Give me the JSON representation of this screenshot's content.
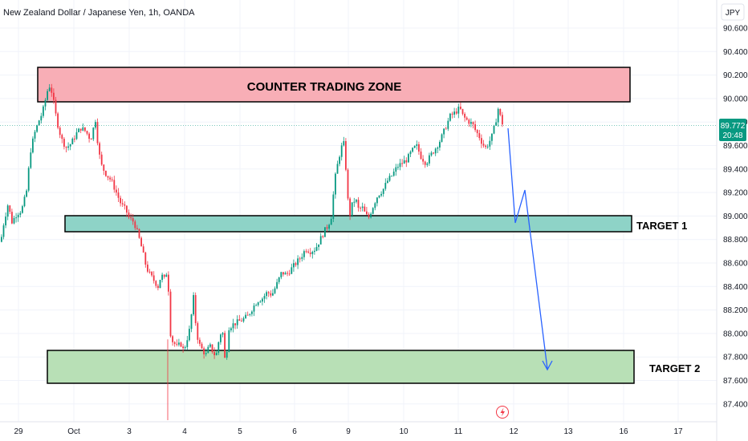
{
  "header": {
    "instrument_title": "New Zealand Dollar / Japanese Yen, 1h, OANDA",
    "currency_button": "JPY"
  },
  "price_badge": {
    "price": "89.772",
    "countdown": "20:48",
    "color": "#089981"
  },
  "colors": {
    "up_candle": "#089981",
    "down_candle": "#f23645",
    "counter_zone_fill": "#f8aeb6",
    "target1_fill": "#8ed3c7",
    "target2_fill": "#b8e0b6",
    "arrow": "#2962ff",
    "grid": "#f0f3fa",
    "current_price_line": "#089981"
  },
  "chart_data": {
    "type": "candlestick",
    "title": "New Zealand Dollar / Japanese Yen, 1h, OANDA",
    "y_axis": {
      "unit": "JPY",
      "range": [
        87.3,
        90.75
      ],
      "ticks": [
        "90.600",
        "90.400",
        "90.200",
        "90.000",
        "89.800",
        "89.600",
        "89.400",
        "89.200",
        "89.000",
        "88.800",
        "88.600",
        "88.400",
        "88.200",
        "88.000",
        "87.800",
        "87.600",
        "87.400"
      ]
    },
    "x_axis": {
      "ticks": [
        "29",
        "Oct",
        "3",
        "4",
        "5",
        "6",
        "9",
        "10",
        "11",
        "12",
        "13",
        "16",
        "17"
      ]
    },
    "current_price": 89.772,
    "price_path": [
      [
        0,
        88.78
      ],
      [
        4,
        88.95
      ],
      [
        9,
        89.1
      ],
      [
        14,
        88.95
      ],
      [
        20,
        89.02
      ],
      [
        26,
        89.05
      ],
      [
        32,
        89.2
      ],
      [
        37,
        89.55
      ],
      [
        42,
        89.7
      ],
      [
        48,
        89.82
      ],
      [
        52,
        89.88
      ],
      [
        56,
        90.0
      ],
      [
        60,
        90.12
      ],
      [
        64,
        90.05
      ],
      [
        68,
        89.88
      ],
      [
        72,
        89.75
      ],
      [
        76,
        89.65
      ],
      [
        82,
        89.58
      ],
      [
        88,
        89.62
      ],
      [
        94,
        89.7
      ],
      [
        100,
        89.75
      ],
      [
        106,
        89.72
      ],
      [
        112,
        89.65
      ],
      [
        118,
        89.82
      ],
      [
        122,
        89.55
      ],
      [
        126,
        89.42
      ],
      [
        132,
        89.35
      ],
      [
        138,
        89.3
      ],
      [
        144,
        89.2
      ],
      [
        150,
        89.1
      ],
      [
        156,
        89.05
      ],
      [
        160,
        88.98
      ],
      [
        166,
        88.95
      ],
      [
        172,
        88.82
      ],
      [
        176,
        88.72
      ],
      [
        180,
        88.6
      ],
      [
        184,
        88.52
      ],
      [
        188,
        88.48
      ],
      [
        192,
        88.44
      ],
      [
        196,
        88.4
      ],
      [
        200,
        88.5
      ],
      [
        204,
        88.46
      ],
      [
        208,
        88.55
      ],
      [
        210,
        88.2
      ],
      [
        212,
        87.95
      ],
      [
        216,
        87.92
      ],
      [
        220,
        87.88
      ],
      [
        224,
        87.92
      ],
      [
        228,
        87.85
      ],
      [
        232,
        87.95
      ],
      [
        236,
        88.05
      ],
      [
        240,
        88.32
      ],
      [
        244,
        88.0
      ],
      [
        248,
        87.9
      ],
      [
        252,
        87.85
      ],
      [
        256,
        87.82
      ],
      [
        260,
        87.9
      ],
      [
        264,
        87.85
      ],
      [
        268,
        87.8
      ],
      [
        272,
        87.95
      ],
      [
        276,
        88.05
      ],
      [
        280,
        87.72
      ],
      [
        284,
        88.05
      ],
      [
        290,
        88.08
      ],
      [
        296,
        88.1
      ],
      [
        302,
        88.12
      ],
      [
        308,
        88.15
      ],
      [
        314,
        88.22
      ],
      [
        320,
        88.28
      ],
      [
        326,
        88.3
      ],
      [
        332,
        88.35
      ],
      [
        338,
        88.33
      ],
      [
        344,
        88.42
      ],
      [
        350,
        88.52
      ],
      [
        356,
        88.5
      ],
      [
        362,
        88.55
      ],
      [
        368,
        88.6
      ],
      [
        374,
        88.65
      ],
      [
        380,
        88.72
      ],
      [
        386,
        88.7
      ],
      [
        392,
        88.72
      ],
      [
        398,
        88.8
      ],
      [
        404,
        88.88
      ],
      [
        408,
        88.92
      ],
      [
        412,
        89.0
      ],
      [
        416,
        89.3
      ],
      [
        420,
        89.45
      ],
      [
        424,
        89.58
      ],
      [
        428,
        89.62
      ],
      [
        432,
        89.2
      ],
      [
        434,
        88.98
      ],
      [
        438,
        89.1
      ],
      [
        442,
        89.15
      ],
      [
        446,
        89.05
      ],
      [
        450,
        89.08
      ],
      [
        454,
        89.02
      ],
      [
        458,
        88.98
      ],
      [
        462,
        89.05
      ],
      [
        466,
        89.12
      ],
      [
        470,
        89.18
      ],
      [
        476,
        89.22
      ],
      [
        482,
        89.3
      ],
      [
        488,
        89.35
      ],
      [
        494,
        89.42
      ],
      [
        500,
        89.45
      ],
      [
        506,
        89.48
      ],
      [
        512,
        89.55
      ],
      [
        518,
        89.6
      ],
      [
        524,
        89.5
      ],
      [
        530,
        89.45
      ],
      [
        536,
        89.52
      ],
      [
        542,
        89.58
      ],
      [
        548,
        89.65
      ],
      [
        554,
        89.75
      ],
      [
        560,
        89.85
      ],
      [
        566,
        89.88
      ],
      [
        572,
        89.92
      ],
      [
        576,
        89.85
      ],
      [
        580,
        89.82
      ],
      [
        584,
        89.8
      ],
      [
        588,
        89.78
      ],
      [
        592,
        89.72
      ],
      [
        596,
        89.68
      ],
      [
        600,
        89.62
      ],
      [
        604,
        89.58
      ],
      [
        608,
        89.62
      ],
      [
        612,
        89.68
      ],
      [
        616,
        89.78
      ],
      [
        620,
        89.92
      ],
      [
        624,
        89.8
      ],
      [
        627,
        89.772
      ]
    ],
    "projection_arrows": [
      {
        "from": [
          89.78,
          "11"
        ],
        "to": [
          88.95,
          "12"
        ]
      },
      {
        "from": [
          88.95,
          "12"
        ],
        "to": [
          89.25,
          "12"
        ]
      },
      {
        "from": [
          89.25,
          "12"
        ],
        "to": [
          87.72,
          "13"
        ]
      }
    ],
    "zones": [
      {
        "label": "COUNTER TRADING ZONE",
        "from": 89.98,
        "to": 90.26
      },
      {
        "label": "TARGET 1",
        "from": 88.89,
        "to": 89.02
      },
      {
        "label": "TARGET 2",
        "from": 87.62,
        "to": 87.9
      }
    ]
  },
  "footer": {
    "lightning_icon": "lightning-icon"
  }
}
